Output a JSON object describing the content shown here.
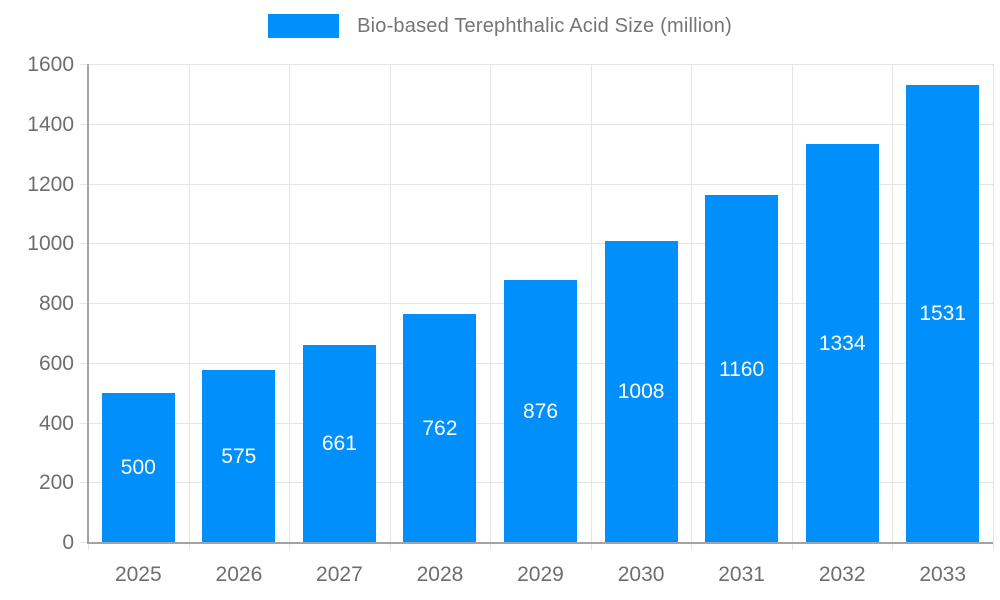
{
  "legend": {
    "label": "Bio-based Terephthalic Acid Size (million)"
  },
  "colors": {
    "bar": "#008FFB",
    "grid": "#e5e5e5",
    "axis": "#a3a3a3",
    "tick_label": "#6e6e6e",
    "legend_label": "#757575",
    "value_label": "#ffffff"
  },
  "chart_data": {
    "type": "bar",
    "title": "Bio-based Terephthalic Acid Size (million)",
    "categories": [
      "2025",
      "2026",
      "2027",
      "2028",
      "2029",
      "2030",
      "2031",
      "2032",
      "2033"
    ],
    "values": [
      500,
      575,
      661,
      762,
      876,
      1008,
      1160,
      1334,
      1531
    ],
    "series": [
      {
        "name": "Bio-based Terephthalic Acid Size (million)",
        "values": [
          500,
          575,
          661,
          762,
          876,
          1008,
          1160,
          1334,
          1531
        ]
      }
    ],
    "xlabel": "",
    "ylabel": "",
    "ylim": [
      0,
      1600
    ],
    "ytick_step": 200,
    "yticks": [
      0,
      200,
      400,
      600,
      800,
      1000,
      1200,
      1400,
      1600
    ],
    "grid": true,
    "legend_position": "top",
    "value_label_position": "inside-center"
  }
}
